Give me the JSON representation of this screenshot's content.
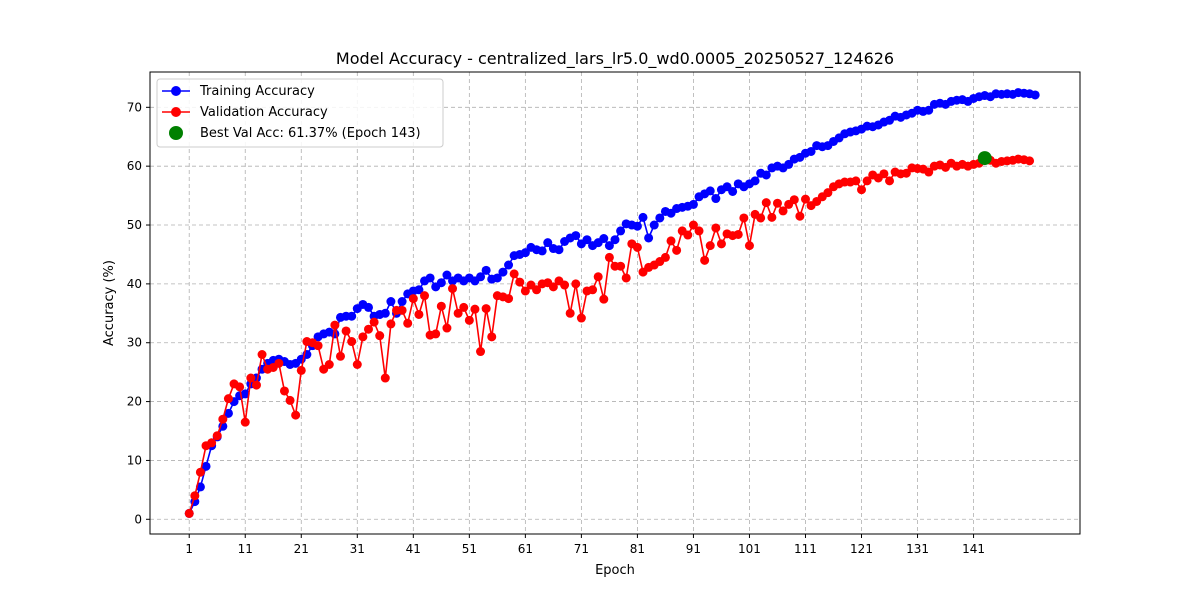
{
  "chart_data": {
    "type": "line",
    "title": "Model Accuracy - centralized_lars_lr5.0_wd0.0005_20250527_124626",
    "xlabel": "Epoch",
    "ylabel": "Accuracy (%)",
    "xlim": [
      -6,
      160
    ],
    "ylim": [
      -2.5,
      76
    ],
    "xticks": [
      1,
      11,
      21,
      31,
      41,
      51,
      61,
      71,
      81,
      91,
      101,
      111,
      121,
      131,
      141
    ],
    "yticks": [
      0,
      10,
      20,
      30,
      40,
      50,
      60,
      70
    ],
    "grid": true,
    "legend_position": "top-left",
    "series": [
      {
        "name": "Training Accuracy",
        "color": "#0000ff",
        "x_start": 1,
        "values": [
          1.0,
          3.0,
          5.5,
          9.0,
          12.5,
          14.0,
          15.8,
          18.0,
          20.0,
          21.0,
          21.3,
          23.0,
          24.0,
          25.5,
          26.5,
          27.0,
          27.2,
          26.8,
          26.3,
          26.5,
          27.2,
          28.0,
          29.5,
          31.0,
          31.5,
          31.8,
          31.5,
          34.3,
          34.5,
          34.5,
          35.8,
          36.5,
          36.0,
          34.5,
          34.8,
          35.0,
          37.0,
          35.0,
          37.0,
          38.3,
          38.8,
          39.0,
          40.5,
          41.0,
          39.5,
          40.2,
          41.5,
          40.5,
          41.0,
          40.5,
          41.0,
          40.5,
          41.2,
          42.3,
          40.8,
          41.0,
          42.0,
          43.2,
          44.8,
          45.0,
          45.3,
          46.2,
          45.8,
          45.6,
          47.0,
          46.0,
          45.8,
          47.2,
          47.8,
          48.2,
          46.8,
          47.5,
          46.5,
          47.0,
          47.7,
          46.5,
          47.5,
          49.0,
          50.2,
          50.0,
          49.8,
          51.3,
          47.8,
          50.0,
          51.2,
          52.3,
          52.0,
          52.8,
          53.0,
          53.2,
          53.5,
          54.8,
          55.3,
          55.8,
          54.5,
          56.0,
          56.5,
          55.7,
          57.0,
          56.5,
          57.0,
          57.5,
          58.8,
          58.5,
          59.7,
          60.0,
          59.7,
          60.3,
          61.2,
          61.5,
          62.2,
          62.5,
          63.5,
          63.3,
          63.5,
          64.2,
          64.8,
          65.5,
          65.8,
          66.0,
          66.3,
          66.8,
          66.7,
          67.0,
          67.5,
          67.8,
          68.5,
          68.3,
          68.7,
          69.0,
          69.5,
          69.3,
          69.5,
          70.5,
          70.7,
          70.5,
          71.0,
          71.2,
          71.3,
          71.0,
          71.5,
          71.8,
          72.0,
          71.8,
          72.3,
          72.2,
          72.3,
          72.2,
          72.5,
          72.4,
          72.3,
          72.1
        ]
      },
      {
        "name": "Validation Accuracy",
        "color": "#ff0000",
        "x_start": 1,
        "values": [
          1.0,
          4.0,
          8.0,
          12.5,
          13.0,
          14.2,
          17.0,
          20.5,
          23.0,
          22.5,
          16.5,
          24.0,
          22.8,
          28.0,
          25.5,
          25.8,
          26.5,
          21.8,
          20.2,
          17.7,
          25.3,
          30.2,
          30.0,
          29.5,
          25.5,
          26.3,
          33.0,
          27.7,
          32.0,
          30.2,
          26.3,
          31.0,
          32.3,
          33.5,
          31.2,
          24.0,
          33.2,
          35.5,
          35.5,
          33.3,
          37.5,
          34.8,
          38.0,
          31.3,
          31.5,
          36.2,
          32.5,
          39.2,
          35.0,
          36.0,
          33.8,
          35.7,
          28.5,
          35.8,
          31.0,
          38.0,
          37.8,
          37.5,
          41.7,
          40.3,
          38.8,
          39.8,
          39.0,
          40.0,
          40.2,
          39.5,
          40.5,
          39.8,
          35.0,
          40.0,
          34.2,
          38.8,
          39.0,
          41.2,
          37.4,
          44.5,
          43.0,
          43.0,
          41.0,
          46.8,
          46.2,
          42.0,
          42.8,
          43.2,
          43.8,
          44.5,
          47.3,
          45.7,
          49.0,
          48.3,
          50.0,
          49.0,
          44.0,
          46.5,
          49.5,
          46.8,
          48.5,
          48.2,
          48.4,
          51.2,
          46.5,
          51.8,
          51.2,
          53.8,
          51.3,
          53.7,
          52.4,
          53.5,
          54.3,
          51.5,
          54.4,
          53.3,
          54.0,
          54.8,
          55.5,
          56.5,
          57.0,
          57.3,
          57.3,
          57.5,
          56.0,
          57.5,
          58.5,
          58.0,
          58.7,
          57.5,
          59.0,
          58.7,
          58.8,
          59.7,
          59.6,
          59.5,
          59.0,
          60.0,
          60.2,
          59.8,
          60.5,
          60.0,
          60.3,
          60.0,
          60.3,
          60.5,
          61.37,
          61.0,
          60.5,
          60.8,
          60.9,
          61.0,
          61.2,
          61.1,
          60.9
        ]
      }
    ],
    "best_point": {
      "label": "Best Val Acc: 61.37% (Epoch 143)",
      "epoch": 143,
      "value": 61.37,
      "color": "#008000"
    }
  }
}
